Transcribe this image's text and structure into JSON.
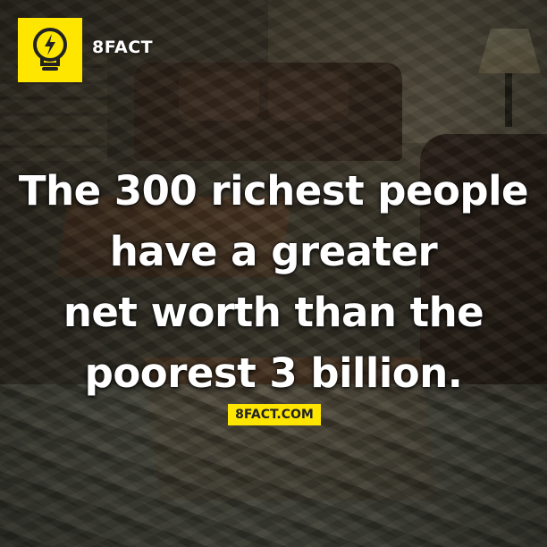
{
  "brand": {
    "name": "8FACT",
    "logo_icon": "lightbulb-lightning-icon",
    "logo_color": "#ffe600"
  },
  "headline": {
    "lines": [
      "The 300 richest people",
      "have a greater",
      "net worth than the",
      "poorest 3 billion."
    ]
  },
  "footer": {
    "url": "8FACT.COM"
  }
}
